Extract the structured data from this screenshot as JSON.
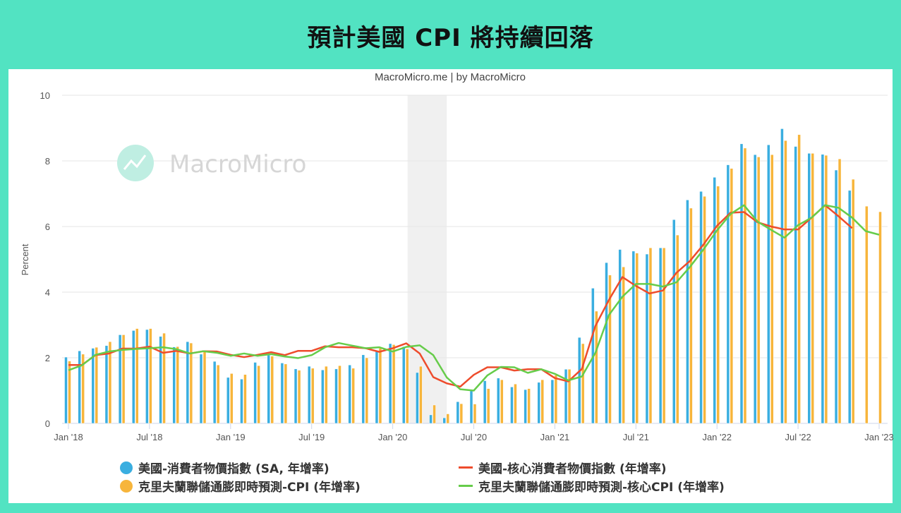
{
  "title": "預計美國 CPI 將持續回落",
  "chart_data": {
    "type": "bar+line",
    "subtitle": "MacroMicro.me | by MacroMicro",
    "watermark": "MacroMicro",
    "ylabel": "Percent",
    "ylim": [
      0,
      10
    ],
    "yticks": [
      "0",
      "2",
      "4",
      "6",
      "8",
      "10"
    ],
    "grid": true,
    "legend_position": "bottom",
    "x_start": "2018-01",
    "x_end": "2023-01",
    "xtick_labels": [
      "Jan '18",
      "Jul '18",
      "Jan '19",
      "Jul '19",
      "Jan '20",
      "Jul '20",
      "Jan '21",
      "Jul '21",
      "Jan '22",
      "Jul '22",
      "Jan '23"
    ],
    "shaded_period": {
      "start": "2020-02",
      "end": "2020-04"
    },
    "series": [
      {
        "name": "美國-消費者物價指數 (SA, 年增率)",
        "kind": "bar",
        "color": "#3aaee0",
        "values": [
          2.02,
          2.21,
          2.29,
          2.37,
          2.7,
          2.83,
          2.86,
          2.65,
          2.33,
          2.49,
          2.11,
          1.89,
          1.4,
          1.35,
          1.86,
          2.08,
          1.84,
          1.66,
          1.74,
          1.63,
          1.66,
          1.78,
          2.09,
          2.19,
          2.43,
          2.34,
          1.55,
          0.26,
          0.17,
          0.66,
          0.99,
          1.3,
          1.38,
          1.11,
          1.03,
          1.25,
          1.33,
          1.65,
          2.62,
          4.12,
          4.9,
          5.3,
          5.25,
          5.16,
          5.35,
          6.21,
          6.81,
          7.07,
          7.5,
          7.88,
          8.52,
          8.19,
          8.49,
          8.98,
          8.44,
          8.23,
          8.2,
          7.72,
          7.1,
          null,
          null
        ]
      },
      {
        "name": "克里夫蘭聯儲通膨即時預測-CPI (年增率)",
        "kind": "bar",
        "color": "#f7b53b",
        "values": [
          1.9,
          2.11,
          2.32,
          2.49,
          2.7,
          2.89,
          2.89,
          2.75,
          2.34,
          2.45,
          2.21,
          1.78,
          1.52,
          1.49,
          1.76,
          2.05,
          1.81,
          1.62,
          1.68,
          1.74,
          1.76,
          1.68,
          2.0,
          2.29,
          2.4,
          2.27,
          1.74,
          0.56,
          0.29,
          0.6,
          0.59,
          1.06,
          1.33,
          1.2,
          1.06,
          1.33,
          1.47,
          1.65,
          2.43,
          3.42,
          4.52,
          4.77,
          5.19,
          5.35,
          5.35,
          5.74,
          6.56,
          6.92,
          7.23,
          7.77,
          8.39,
          8.12,
          8.19,
          8.62,
          8.8,
          8.23,
          8.17,
          8.06,
          7.44,
          6.62,
          6.45
        ]
      },
      {
        "name": "美國-核心消費者物價指數 (年增率)",
        "kind": "line",
        "color": "#ee4c2c",
        "values": [
          1.78,
          1.78,
          2.08,
          2.13,
          2.28,
          2.28,
          2.34,
          2.15,
          2.21,
          2.13,
          2.2,
          2.19,
          2.09,
          2.02,
          2.09,
          2.17,
          2.08,
          2.21,
          2.21,
          2.35,
          2.32,
          2.32,
          2.29,
          2.18,
          2.29,
          2.44,
          2.13,
          1.41,
          1.22,
          1.12,
          1.48,
          1.71,
          1.71,
          1.61,
          1.65,
          1.65,
          1.38,
          1.28,
          1.66,
          2.97,
          3.76,
          4.46,
          4.19,
          3.96,
          4.05,
          4.59,
          4.95,
          5.45,
          6.02,
          6.42,
          6.44,
          6.13,
          6.0,
          5.91,
          5.91,
          6.27,
          6.65,
          6.31,
          5.95,
          null,
          null
        ]
      },
      {
        "name": "克里夫蘭聯儲通膨即時預測-核心CPI (年增率)",
        "kind": "line",
        "color": "#66cc4a",
        "values": [
          1.62,
          1.77,
          2.09,
          2.19,
          2.24,
          2.27,
          2.29,
          2.32,
          2.26,
          2.13,
          2.2,
          2.15,
          2.06,
          2.13,
          2.06,
          2.11,
          2.04,
          1.99,
          2.08,
          2.32,
          2.45,
          2.37,
          2.29,
          2.32,
          2.19,
          2.33,
          2.38,
          2.08,
          1.4,
          1.04,
          1.0,
          1.46,
          1.72,
          1.71,
          1.54,
          1.65,
          1.51,
          1.31,
          1.43,
          2.15,
          3.3,
          3.86,
          4.25,
          4.25,
          4.17,
          4.3,
          4.77,
          5.3,
          5.88,
          6.38,
          6.65,
          6.15,
          5.9,
          5.66,
          6.04,
          6.27,
          6.65,
          6.57,
          6.27,
          5.86,
          5.75
        ]
      }
    ]
  }
}
